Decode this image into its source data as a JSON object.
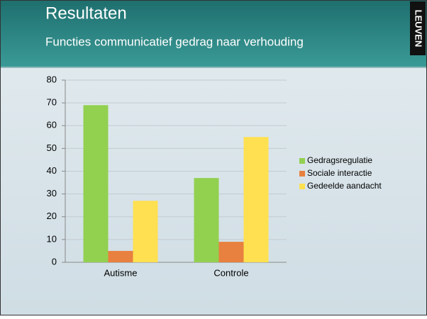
{
  "header": {
    "title": "Resultaten",
    "subtitle": "Functies communicatief gedrag naar verhouding",
    "logo": "LEUVEN"
  },
  "chart_data": {
    "type": "bar",
    "categories": [
      "Autisme",
      "Controle"
    ],
    "series": [
      {
        "name": "Gedragsregulatie",
        "color": "#92d050",
        "values": [
          69,
          37
        ]
      },
      {
        "name": "Sociale interactie",
        "color": "#e8803f",
        "values": [
          5,
          9
        ]
      },
      {
        "name": "Gedeelde aandacht",
        "color": "#ffe050",
        "values": [
          27,
          55
        ]
      }
    ],
    "ylim": [
      0,
      80
    ],
    "yticks": [
      0,
      10,
      20,
      30,
      40,
      50,
      60,
      70,
      80
    ],
    "grid": true,
    "legend": "right"
  }
}
